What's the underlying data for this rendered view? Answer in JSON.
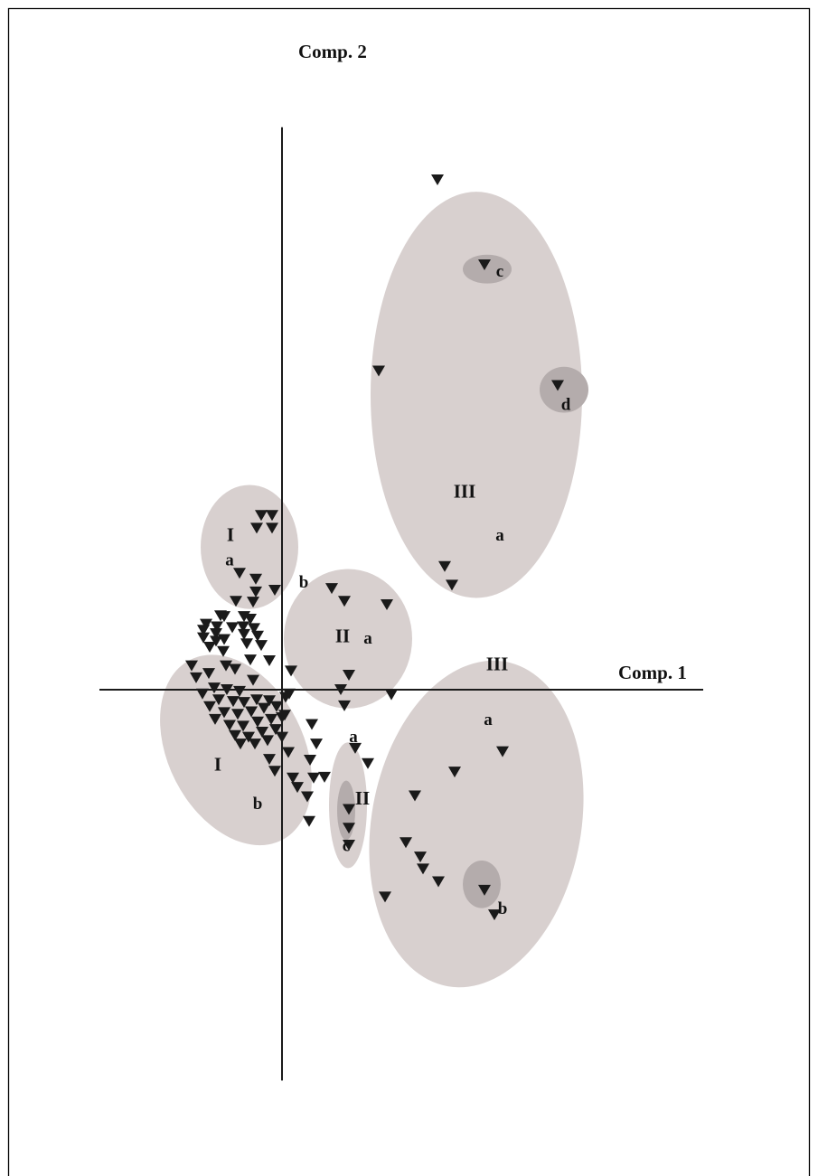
{
  "chart_data": {
    "type": "scatter",
    "title": "",
    "xlabel": "Comp. 1",
    "ylabel": "Comp. 2",
    "xlim": [
      -2.02,
      4.66
    ],
    "ylim": [
      -4.6,
      6.62
    ],
    "marker": "inverted-triangle",
    "colors": {
      "marker": "#1a1a1a",
      "cluster": "#d8d0cf",
      "subcluster": "#b4acac",
      "axis": "#1a1a1a",
      "frame": "#000000"
    },
    "clusters": [
      {
        "group": "III",
        "sub": "a",
        "level": "major",
        "cx": 2.15,
        "cy": 3.47,
        "rx": 1.17,
        "ry": 2.39
      },
      {
        "group": "III",
        "sub": "a",
        "level": "major",
        "cx": 2.15,
        "cy": -1.58,
        "rx": 1.16,
        "ry": 1.94,
        "rotate": 10
      },
      {
        "group": "II",
        "sub": "a",
        "level": "major",
        "cx": 0.73,
        "cy": 0.6,
        "rx": 0.71,
        "ry": 0.82
      },
      {
        "group": "II",
        "sub": "",
        "level": "major",
        "cx": 0.73,
        "cy": -1.36,
        "rx": 0.21,
        "ry": 0.74
      },
      {
        "group": "I",
        "sub": "a",
        "level": "major",
        "cx": -0.36,
        "cy": 1.68,
        "rx": 0.54,
        "ry": 0.73
      },
      {
        "group": "I",
        "sub": "b",
        "level": "major",
        "cx": -0.51,
        "cy": -0.71,
        "rx": 0.75,
        "ry": 1.19,
        "rotate": -27
      },
      {
        "group": "III",
        "sub": "c",
        "level": "minor",
        "cx": 2.27,
        "cy": 4.95,
        "rx": 0.27,
        "ry": 0.17
      },
      {
        "group": "III",
        "sub": "d",
        "level": "minor",
        "cx": 3.12,
        "cy": 3.53,
        "rx": 0.27,
        "ry": 0.27
      },
      {
        "group": "III",
        "sub": "b",
        "level": "minor",
        "cx": 2.21,
        "cy": -2.29,
        "rx": 0.21,
        "ry": 0.28
      },
      {
        "group": "II",
        "sub": "c",
        "level": "minor",
        "cx": 0.71,
        "cy": -1.42,
        "rx": 0.1,
        "ry": 0.35
      }
    ],
    "labels": [
      {
        "text": "I",
        "x": -0.57,
        "y": 1.8,
        "kind": "roman"
      },
      {
        "text": "a",
        "x": -0.58,
        "y": 1.51,
        "kind": "letter"
      },
      {
        "text": "b",
        "x": 0.24,
        "y": 1.25,
        "kind": "letter"
      },
      {
        "text": "II",
        "x": 0.67,
        "y": 0.61,
        "kind": "roman"
      },
      {
        "text": "a",
        "x": 0.95,
        "y": 0.59,
        "kind": "letter"
      },
      {
        "text": "III",
        "x": 2.02,
        "y": 2.31,
        "kind": "roman"
      },
      {
        "text": "a",
        "x": 2.41,
        "y": 1.8,
        "kind": "letter"
      },
      {
        "text": "c",
        "x": 2.41,
        "y": 4.91,
        "kind": "letter"
      },
      {
        "text": "d",
        "x": 3.14,
        "y": 3.34,
        "kind": "letter"
      },
      {
        "text": "III",
        "x": 2.38,
        "y": 0.28,
        "kind": "roman"
      },
      {
        "text": "a",
        "x": 2.28,
        "y": -0.37,
        "kind": "letter"
      },
      {
        "text": "b",
        "x": 2.44,
        "y": -2.59,
        "kind": "letter"
      },
      {
        "text": "a",
        "x": 0.79,
        "y": -0.57,
        "kind": "letter"
      },
      {
        "text": "II",
        "x": 0.89,
        "y": -1.3,
        "kind": "roman"
      },
      {
        "text": "c",
        "x": 0.71,
        "y": -1.85,
        "kind": "letter"
      },
      {
        "text": "I",
        "x": -0.71,
        "y": -0.9,
        "kind": "roman"
      },
      {
        "text": "b",
        "x": -0.27,
        "y": -1.36,
        "kind": "letter"
      }
    ],
    "points": [
      [
        1.72,
        6.0
      ],
      [
        2.24,
        5.0
      ],
      [
        3.05,
        3.58
      ],
      [
        1.07,
        3.75
      ],
      [
        1.8,
        1.45
      ],
      [
        1.88,
        1.23
      ],
      [
        -0.23,
        2.05
      ],
      [
        -0.11,
        2.05
      ],
      [
        -0.28,
        1.9
      ],
      [
        -0.11,
        1.9
      ],
      [
        -0.47,
        1.37
      ],
      [
        -0.29,
        1.3
      ],
      [
        -0.08,
        1.17
      ],
      [
        -0.29,
        1.15
      ],
      [
        -0.51,
        1.04
      ],
      [
        -0.32,
        1.03
      ],
      [
        0.55,
        1.19
      ],
      [
        0.69,
        1.04
      ],
      [
        1.16,
        1.0
      ],
      [
        0.74,
        0.17
      ],
      [
        0.65,
        0.0
      ],
      [
        1.21,
        -0.06
      ],
      [
        0.69,
        -0.19
      ],
      [
        0.1,
        0.22
      ],
      [
        0.08,
        -0.05
      ],
      [
        0.81,
        -0.69
      ],
      [
        0.95,
        -0.87
      ],
      [
        1.47,
        -1.25
      ],
      [
        1.91,
        -0.97
      ],
      [
        2.44,
        -0.73
      ],
      [
        1.37,
        -1.8
      ],
      [
        1.53,
        -1.97
      ],
      [
        1.56,
        -2.11
      ],
      [
        1.73,
        -2.26
      ],
      [
        1.14,
        -2.44
      ],
      [
        2.24,
        -2.36
      ],
      [
        2.35,
        -2.65
      ],
      [
        0.74,
        -1.41
      ],
      [
        0.74,
        -1.63
      ],
      [
        0.74,
        -1.83
      ],
      [
        -0.68,
        0.87
      ],
      [
        -0.64,
        0.86
      ],
      [
        -0.84,
        0.77
      ],
      [
        -0.72,
        0.74
      ],
      [
        -0.87,
        0.7
      ],
      [
        -0.73,
        0.66
      ],
      [
        -0.87,
        0.61
      ],
      [
        -0.73,
        0.57
      ],
      [
        -0.8,
        0.5
      ],
      [
        -0.64,
        0.59
      ],
      [
        -0.42,
        0.86
      ],
      [
        -0.35,
        0.83
      ],
      [
        -0.43,
        0.74
      ],
      [
        -0.31,
        0.72
      ],
      [
        -0.42,
        0.65
      ],
      [
        -0.27,
        0.63
      ],
      [
        -0.39,
        0.54
      ],
      [
        -0.23,
        0.52
      ],
      [
        -0.14,
        0.34
      ],
      [
        -1.0,
        0.28
      ],
      [
        -0.95,
        0.14
      ],
      [
        -0.81,
        0.19
      ],
      [
        -0.62,
        0.28
      ],
      [
        -0.52,
        0.24
      ],
      [
        -0.32,
        0.11
      ],
      [
        -0.47,
        -0.02
      ],
      [
        -0.61,
        0.0
      ],
      [
        -0.75,
        0.02
      ],
      [
        -0.88,
        -0.05
      ],
      [
        -0.7,
        -0.12
      ],
      [
        -0.54,
        -0.14
      ],
      [
        -0.42,
        -0.15
      ],
      [
        -0.28,
        -0.12
      ],
      [
        -0.14,
        -0.13
      ],
      [
        0.04,
        -0.09
      ],
      [
        -0.8,
        -0.2
      ],
      [
        -0.64,
        -0.27
      ],
      [
        -0.49,
        -0.29
      ],
      [
        -0.34,
        -0.26
      ],
      [
        -0.2,
        -0.22
      ],
      [
        -0.06,
        -0.2
      ],
      [
        -0.74,
        -0.35
      ],
      [
        -0.58,
        -0.42
      ],
      [
        -0.43,
        -0.43
      ],
      [
        -0.27,
        -0.38
      ],
      [
        -0.12,
        -0.35
      ],
      [
        0.0,
        -0.33
      ],
      [
        -0.52,
        -0.54
      ],
      [
        -0.37,
        -0.56
      ],
      [
        -0.22,
        -0.5
      ],
      [
        -0.07,
        -0.47
      ],
      [
        -0.46,
        -0.64
      ],
      [
        -0.3,
        -0.64
      ],
      [
        -0.16,
        -0.6
      ],
      [
        0.0,
        -0.56
      ],
      [
        0.33,
        -0.41
      ],
      [
        0.38,
        -0.64
      ],
      [
        0.31,
        -0.83
      ],
      [
        0.07,
        -0.74
      ],
      [
        -0.14,
        -0.82
      ],
      [
        -0.08,
        -0.96
      ],
      [
        0.12,
        -1.04
      ],
      [
        0.17,
        -1.15
      ],
      [
        0.35,
        -1.04
      ],
      [
        0.47,
        -1.03
      ],
      [
        0.28,
        -1.26
      ],
      [
        0.3,
        -1.55
      ],
      [
        0.03,
        -0.3
      ],
      [
        -0.55,
        0.73
      ],
      [
        -0.65,
        0.45
      ],
      [
        -0.35,
        0.35
      ]
    ]
  }
}
